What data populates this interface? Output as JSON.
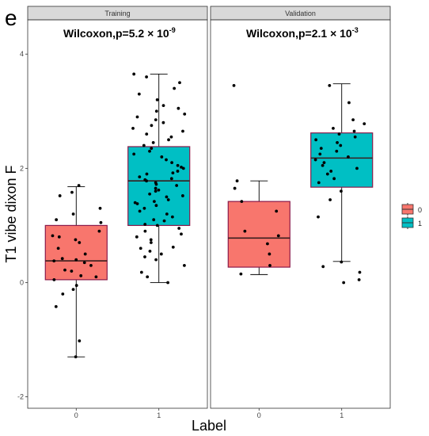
{
  "panel_letter": "e",
  "chart_data": {
    "type": "box",
    "xlabel": "Label",
    "ylabel": "T1 vibe dixon F",
    "ylim": [
      -2.2,
      4.6
    ],
    "yticks": [
      -2,
      0,
      2,
      4
    ],
    "categories": [
      "0",
      "1"
    ],
    "grid": false,
    "legend": {
      "placement": "right",
      "entries": [
        "0",
        "1"
      ]
    },
    "colors": {
      "0": "#F8766D",
      "1": "#00BFC4"
    },
    "facets": [
      {
        "name": "Training",
        "annotation": {
          "prefix": "Wilcoxon,p=5.2 × 10",
          "exponent": "-9"
        },
        "boxes": [
          {
            "label": "0",
            "min": -1.3,
            "q1": 0.05,
            "median": 0.38,
            "q3": 1.0,
            "max": 1.68
          },
          {
            "label": "1",
            "min": 0.0,
            "q1": 1.0,
            "median": 1.78,
            "q3": 2.38,
            "max": 3.65
          }
        ],
        "points": {
          "0": [
            -1.3,
            -1.02,
            -0.42,
            -0.2,
            -0.12,
            -0.05,
            0.05,
            0.1,
            0.12,
            0.2,
            0.22,
            0.3,
            0.35,
            0.38,
            0.4,
            0.42,
            0.5,
            0.6,
            0.7,
            0.75,
            0.8,
            0.82,
            0.9,
            1.05,
            1.1,
            1.2,
            1.3,
            1.52,
            1.58,
            1.7
          ],
          "1": [
            0.0,
            0.1,
            0.18,
            0.3,
            0.4,
            0.45,
            0.5,
            0.55,
            0.6,
            0.62,
            0.7,
            0.75,
            0.8,
            0.85,
            0.9,
            0.95,
            1.0,
            1.02,
            1.08,
            1.1,
            1.15,
            1.2,
            1.25,
            1.3,
            1.35,
            1.38,
            1.4,
            1.42,
            1.45,
            1.5,
            1.52,
            1.55,
            1.6,
            1.62,
            1.65,
            1.7,
            1.72,
            1.75,
            1.78,
            1.8,
            1.82,
            1.85,
            1.9,
            1.92,
            1.95,
            2.0,
            2.02,
            2.05,
            2.1,
            2.15,
            2.2,
            2.25,
            2.3,
            2.35,
            2.4,
            2.45,
            2.5,
            2.55,
            2.6,
            2.65,
            2.7,
            2.75,
            2.8,
            2.85,
            2.9,
            2.95,
            3.0,
            3.05,
            3.1,
            3.2,
            3.3,
            3.4,
            3.5,
            3.6,
            3.65
          ]
        }
      },
      {
        "name": "Validation",
        "annotation": {
          "prefix": "Wilcoxon,p=2.1 × 10",
          "exponent": "-3"
        },
        "boxes": [
          {
            "label": "0",
            "min": 0.14,
            "q1": 0.27,
            "median": 0.78,
            "q3": 1.42,
            "max": 1.78
          },
          {
            "label": "1",
            "min": 0.37,
            "q1": 1.67,
            "median": 2.18,
            "q3": 2.62,
            "max": 3.48
          }
        ],
        "points": {
          "0": [
            0.15,
            0.3,
            0.5,
            0.68,
            0.82,
            0.9,
            1.25,
            1.42,
            1.65,
            1.78,
            3.45
          ],
          "1": [
            0.0,
            0.05,
            0.18,
            0.28,
            0.36,
            1.15,
            1.45,
            1.6,
            1.75,
            1.82,
            1.9,
            1.95,
            2.0,
            2.05,
            2.1,
            2.15,
            2.2,
            2.25,
            2.3,
            2.35,
            2.4,
            2.45,
            2.5,
            2.55,
            2.6,
            2.65,
            2.7,
            2.78,
            2.85,
            3.15,
            3.45
          ]
        }
      }
    ]
  }
}
